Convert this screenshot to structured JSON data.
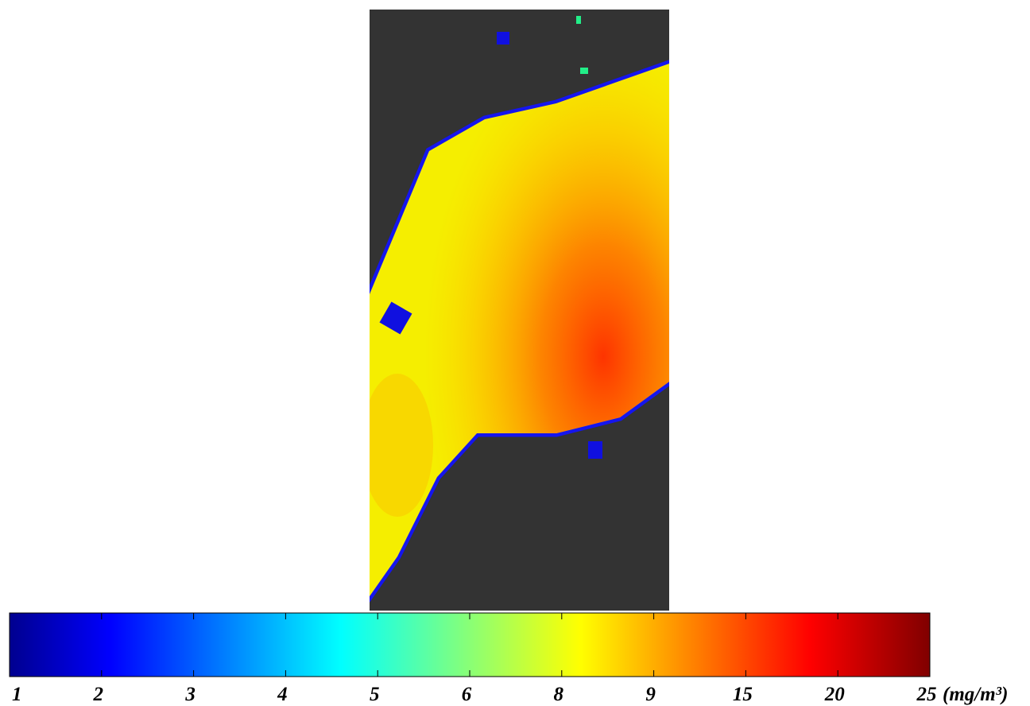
{
  "colorbar": {
    "ticks": [
      1,
      2,
      3,
      4,
      5,
      6,
      8,
      9,
      15,
      20,
      25
    ],
    "unit": "(mg/m³)"
  }
}
